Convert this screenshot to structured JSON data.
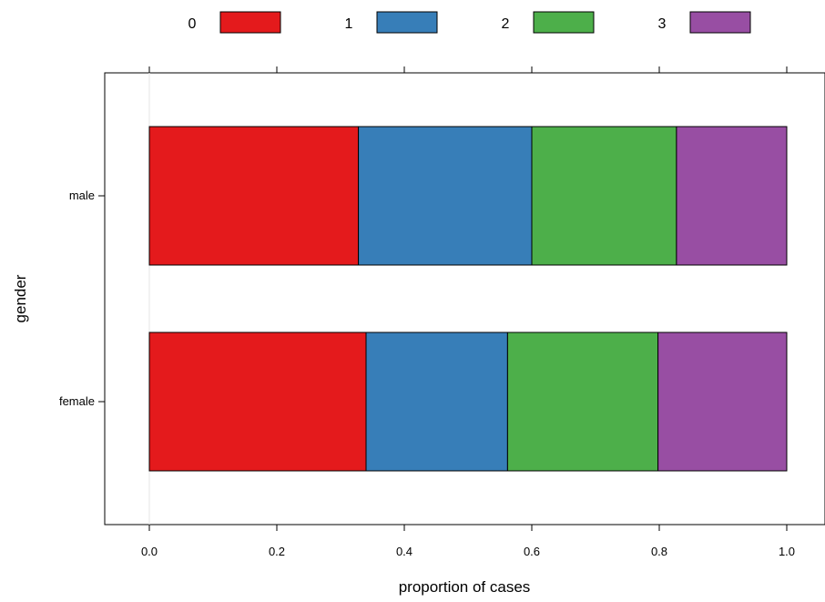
{
  "chart_data": {
    "type": "bar",
    "orientation": "horizontal",
    "stacked": true,
    "title": "",
    "xlabel": "proportion of cases",
    "ylabel": "gender",
    "xlim": [
      -0.07,
      1.04
    ],
    "x_ticks": [
      0.0,
      0.2,
      0.4,
      0.6,
      0.8,
      1.0
    ],
    "x_tick_labels": [
      "0.0",
      "0.2",
      "0.4",
      "0.6",
      "0.8",
      "1.0"
    ],
    "categories": [
      "male",
      "female"
    ],
    "legend_position": "top",
    "grid": false,
    "series": [
      {
        "name": "0",
        "color": "#e41a1c",
        "values": [
          0.328,
          0.34
        ]
      },
      {
        "name": "1",
        "color": "#377eb8",
        "values": [
          0.272,
          0.222
        ]
      },
      {
        "name": "2",
        "color": "#4daf4a",
        "values": [
          0.227,
          0.236
        ]
      },
      {
        "name": "3",
        "color": "#984ea3",
        "values": [
          0.173,
          0.202
        ]
      }
    ]
  }
}
